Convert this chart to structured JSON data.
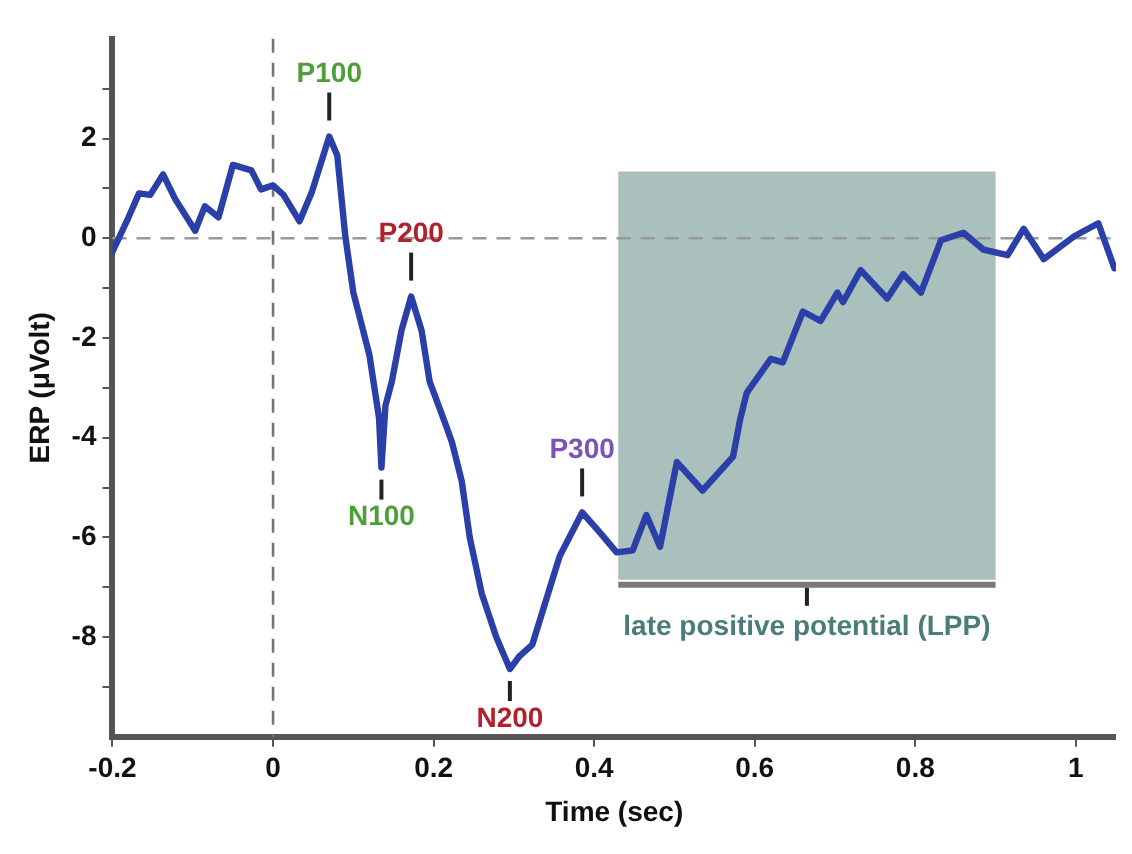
{
  "chart_data": {
    "type": "line",
    "xlabel": "Time (sec)",
    "ylabel": "ERP (μVolt)",
    "xlim": [
      -0.2,
      1.05
    ],
    "ylim": [
      -10,
      4
    ],
    "xticks": [
      -0.2,
      0,
      0.2,
      0.4,
      0.6,
      0.8,
      1
    ],
    "yticks": [
      {
        "value": 3,
        "label": null
      },
      2,
      {
        "value": 1,
        "label": null
      },
      0,
      {
        "value": -1,
        "label": null
      },
      -2,
      {
        "value": -3,
        "label": null
      },
      -4,
      {
        "value": -5,
        "label": null
      },
      -6,
      {
        "value": -7,
        "label": null
      },
      -8,
      {
        "value": -9,
        "label": null
      }
    ],
    "grid": false,
    "legend": false,
    "marker": "none",
    "line_style": "solid",
    "series": [
      {
        "color": "#2b3fa8",
        "x": [
          -0.2,
          -0.18,
          -0.167,
          -0.153,
          -0.137,
          -0.122,
          -0.097,
          -0.085,
          -0.068,
          -0.05,
          -0.027,
          -0.015,
          0,
          0.013,
          0.033,
          0.048,
          0.07,
          0.08,
          0.09,
          0.1,
          0.12,
          0.132,
          0.135,
          0.14,
          0.148,
          0.16,
          0.172,
          0.185,
          0.195,
          0.215,
          0.223,
          0.235,
          0.245,
          0.26,
          0.278,
          0.295,
          0.307,
          0.323,
          0.345,
          0.357,
          0.385,
          0.407,
          0.428,
          0.448,
          0.465,
          0.482,
          0.503,
          0.535,
          0.573,
          0.582,
          0.59,
          0.62,
          0.635,
          0.66,
          0.682,
          0.703,
          0.71,
          0.732,
          0.765,
          0.785,
          0.807,
          0.832,
          0.86,
          0.885,
          0.915,
          0.935,
          0.96,
          0.998,
          1.028,
          1.048
        ],
        "values": [
          -0.27,
          0.42,
          0.9,
          0.87,
          1.28,
          0.79,
          0.15,
          0.64,
          0.42,
          1.47,
          1.36,
          0.98,
          1.06,
          0.87,
          0.34,
          0.91,
          2.04,
          1.66,
          0.04,
          -1.09,
          -2.34,
          -3.6,
          -4.6,
          -3.36,
          -2.87,
          -1.85,
          -1.17,
          -1.85,
          -2.87,
          -3.74,
          -4.1,
          -4.87,
          -6.0,
          -7.13,
          -8.0,
          -8.64,
          -8.38,
          -8.15,
          -7.0,
          -6.38,
          -5.5,
          -5.9,
          -6.3,
          -6.26,
          -5.55,
          -6.19,
          -4.49,
          -5.06,
          -4.38,
          -3.62,
          -3.1,
          -2.42,
          -2.49,
          -1.47,
          -1.66,
          -1.09,
          -1.28,
          -0.64,
          -1.21,
          -0.72,
          -1.09,
          -0.04,
          0.11,
          -0.23,
          -0.34,
          0.19,
          -0.42,
          0.04,
          0.3,
          -0.6
        ]
      }
    ],
    "ref_lines": [
      {
        "axis": "x",
        "value": 0,
        "line_style": "dashed",
        "color": "#777777"
      },
      {
        "axis": "y",
        "value": 0,
        "line_style": "dashed",
        "color": "#999999"
      }
    ],
    "bands": [
      {
        "axis": "x",
        "from": 0.43,
        "to": 0.9,
        "label": "late positive potential (LPP)",
        "color": "#a9c0bc"
      }
    ],
    "annotations": [
      {
        "text": "P100",
        "x": 0.07,
        "y": 2.04
      },
      {
        "text": "P200",
        "x": 0.172,
        "y": -1.17
      },
      {
        "text": "N100",
        "x": 0.135,
        "y": -4.6
      },
      {
        "text": "N200",
        "x": 0.295,
        "y": -8.64
      },
      {
        "text": "P300",
        "x": 0.385,
        "y": -5.5
      }
    ]
  }
}
